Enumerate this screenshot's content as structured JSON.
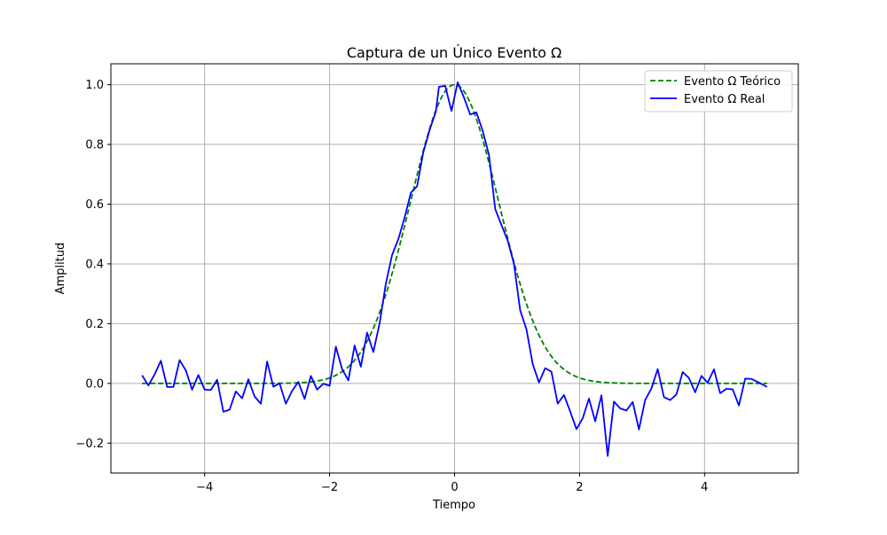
{
  "chart_data": {
    "type": "line",
    "title": "Captura de un Único Evento Ω",
    "xlabel": "Tiempo",
    "ylabel": "Amplitud",
    "xlim": [
      -5.5,
      5.5
    ],
    "ylim": [
      -0.3,
      1.07
    ],
    "xticks": [
      -4,
      -2,
      0,
      2,
      4
    ],
    "xtick_labels": [
      "−4",
      "−2",
      "0",
      "2",
      "4"
    ],
    "yticks": [
      -0.2,
      0.0,
      0.2,
      0.4,
      0.6,
      0.8,
      1.0
    ],
    "ytick_labels": [
      "−0.2",
      "0.0",
      "0.2",
      "0.4",
      "0.6",
      "0.8",
      "1.0"
    ],
    "grid": true,
    "legend_position": "top-right",
    "series": [
      {
        "name": "Evento Ω Teórico",
        "color": "#008000",
        "style": "dashed",
        "function": "gaussian",
        "amplitude": 1.0,
        "mean": 0.0,
        "sigma": 0.707,
        "x_range": [
          -5,
          5
        ]
      },
      {
        "name": "Evento Ω Real",
        "color": "#0000ff",
        "style": "solid",
        "points": [
          [
            -5.0,
            0.027
          ],
          [
            -4.9,
            -0.007
          ],
          [
            -4.8,
            0.03
          ],
          [
            -4.7,
            0.076
          ],
          [
            -4.6,
            -0.012
          ],
          [
            -4.5,
            -0.012
          ],
          [
            -4.4,
            0.078
          ],
          [
            -4.3,
            0.043
          ],
          [
            -4.2,
            -0.021
          ],
          [
            -4.1,
            0.028
          ],
          [
            -4.0,
            -0.021
          ],
          [
            -3.9,
            -0.022
          ],
          [
            -3.8,
            0.012
          ],
          [
            -3.7,
            -0.095
          ],
          [
            -3.6,
            -0.088
          ],
          [
            -3.5,
            -0.027
          ],
          [
            -3.4,
            -0.05
          ],
          [
            -3.3,
            0.014
          ],
          [
            -3.2,
            -0.044
          ],
          [
            -3.1,
            -0.068
          ],
          [
            -3.0,
            0.073
          ],
          [
            -2.9,
            -0.011
          ],
          [
            -2.8,
            0.0
          ],
          [
            -2.7,
            -0.068
          ],
          [
            -2.6,
            -0.025
          ],
          [
            -2.5,
            0.005
          ],
          [
            -2.4,
            -0.052
          ],
          [
            -2.3,
            0.025
          ],
          [
            -2.2,
            -0.021
          ],
          [
            -2.1,
            -0.001
          ],
          [
            -2.0,
            -0.008
          ],
          [
            -1.9,
            0.123
          ],
          [
            -1.8,
            0.048
          ],
          [
            -1.7,
            0.01
          ],
          [
            -1.6,
            0.127
          ],
          [
            -1.5,
            0.056
          ],
          [
            -1.4,
            0.17
          ],
          [
            -1.3,
            0.105
          ],
          [
            -1.2,
            0.201
          ],
          [
            -1.1,
            0.334
          ],
          [
            -1.0,
            0.43
          ],
          [
            -0.9,
            0.483
          ],
          [
            -0.8,
            0.555
          ],
          [
            -0.7,
            0.638
          ],
          [
            -0.6,
            0.66
          ],
          [
            -0.5,
            0.774
          ],
          [
            -0.4,
            0.848
          ],
          [
            -0.3,
            0.91
          ],
          [
            -0.25,
            0.993
          ],
          [
            -0.15,
            0.996
          ],
          [
            -0.05,
            0.912
          ],
          [
            0.05,
            1.008
          ],
          [
            0.15,
            0.957
          ],
          [
            0.25,
            0.9
          ],
          [
            0.35,
            0.907
          ],
          [
            0.45,
            0.845
          ],
          [
            0.55,
            0.765
          ],
          [
            0.65,
            0.584
          ],
          [
            0.75,
            0.53
          ],
          [
            0.85,
            0.478
          ],
          [
            0.95,
            0.4
          ],
          [
            1.05,
            0.244
          ],
          [
            1.15,
            0.181
          ],
          [
            1.25,
            0.065
          ],
          [
            1.35,
            0.003
          ],
          [
            1.45,
            0.051
          ],
          [
            1.55,
            0.039
          ],
          [
            1.65,
            -0.068
          ],
          [
            1.75,
            -0.039
          ],
          [
            1.85,
            -0.094
          ],
          [
            1.95,
            -0.153
          ],
          [
            2.05,
            -0.117
          ],
          [
            2.15,
            -0.051
          ],
          [
            2.25,
            -0.127
          ],
          [
            2.35,
            -0.04
          ],
          [
            2.45,
            -0.243
          ],
          [
            2.55,
            -0.061
          ],
          [
            2.65,
            -0.084
          ],
          [
            2.75,
            -0.091
          ],
          [
            2.85,
            -0.062
          ],
          [
            2.95,
            -0.154
          ],
          [
            3.05,
            -0.055
          ],
          [
            3.15,
            -0.017
          ],
          [
            3.25,
            0.048
          ],
          [
            3.35,
            -0.046
          ],
          [
            3.45,
            -0.056
          ],
          [
            3.55,
            -0.037
          ],
          [
            3.65,
            0.038
          ],
          [
            3.75,
            0.018
          ],
          [
            3.85,
            -0.03
          ],
          [
            3.95,
            0.025
          ],
          [
            4.05,
            0.002
          ],
          [
            4.15,
            0.047
          ],
          [
            4.25,
            -0.033
          ],
          [
            4.35,
            -0.018
          ],
          [
            4.45,
            -0.02
          ],
          [
            4.55,
            -0.074
          ],
          [
            4.65,
            0.016
          ],
          [
            4.75,
            0.015
          ],
          [
            4.85,
            0.005
          ],
          [
            5.0,
            -0.012
          ]
        ]
      }
    ]
  }
}
